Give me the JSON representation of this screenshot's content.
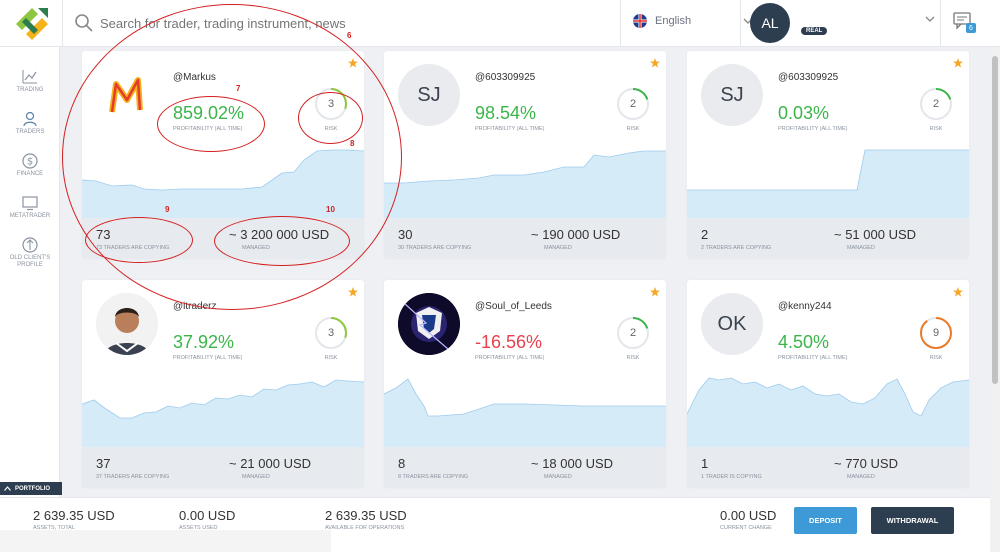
{
  "header": {
    "search_placeholder": "Search for trader, trading instrument, news",
    "language": "English",
    "user_initials": "AL",
    "account_type": "REAL",
    "notifications_count": "6"
  },
  "sidebar": {
    "items": [
      {
        "label": "TRADING",
        "icon": "chart-icon"
      },
      {
        "label": "TRADERS",
        "icon": "traders-icon"
      },
      {
        "label": "FINANCE",
        "icon": "dollar-icon"
      },
      {
        "label": "METATRADER",
        "icon": "monitor-icon"
      },
      {
        "label": "OLD CLIENT'S PROFILE",
        "icon": "profile-icon"
      }
    ],
    "portfolio_tab": "PORTFOLIO"
  },
  "cards": [
    {
      "name": "@Markus",
      "avatar": "",
      "profit": "859.02%",
      "profit_label": "PROFITABILITY (ALL TIME)",
      "risk": "3",
      "risk_level": 0.3,
      "risk_label": "RISK",
      "copiers": "73",
      "copiers_label": "73 TRADERS ARE COPYING",
      "managed": "~ 3 200 000 USD",
      "managed_label": "MANAGED"
    },
    {
      "name": "@603309925",
      "avatar": "SJ",
      "profit": "98.54%",
      "profit_label": "PROFITABILITY (ALL TIME)",
      "risk": "2",
      "risk_level": 0.2,
      "risk_label": "RISK",
      "copiers": "30",
      "copiers_label": "30 TRADERS ARE COPYING",
      "managed": "~ 190 000 USD",
      "managed_label": "MANAGED"
    },
    {
      "name": "@603309925",
      "avatar": "SJ",
      "profit": "0.03%",
      "profit_label": "PROFITABILITY (ALL TIME)",
      "risk": "2",
      "risk_level": 0.2,
      "risk_label": "RISK",
      "copiers": "2",
      "copiers_label": "2 TRADERS ARE COPYING",
      "managed": "~ 51 000 USD",
      "managed_label": "MANAGED"
    },
    {
      "name": "@itraderz",
      "avatar": "",
      "profit": "37.92%",
      "profit_label": "PROFITABILITY (ALL TIME)",
      "risk": "3",
      "risk_level": 0.3,
      "risk_label": "RISK",
      "copiers": "37",
      "copiers_label": "37 TRADERS ARE COPYING",
      "managed": "~ 21 000 USD",
      "managed_label": "MANAGED"
    },
    {
      "name": "@Soul_of_Leeds",
      "avatar": "",
      "profit": "-16.56%",
      "profit_label": "PROFITABILITY (ALL TIME)",
      "risk": "2",
      "risk_level": 0.2,
      "risk_label": "RISK",
      "copiers": "8",
      "copiers_label": "8 TRADERS ARE COPYING",
      "managed": "~ 18 000 USD",
      "managed_label": "MANAGED"
    },
    {
      "name": "@kenny244",
      "avatar": "OK",
      "profit": "4.50%",
      "profit_label": "PROFITABILITY (ALL TIME)",
      "risk": "9",
      "risk_level": 0.9,
      "risk_label": "RISK",
      "copiers": "1",
      "copiers_label": "1 TRADER IS COPYING",
      "managed": "~ 770 USD",
      "managed_label": "MANAGED"
    }
  ],
  "annotations": [
    "6",
    "7",
    "8",
    "9",
    "10"
  ],
  "footer": {
    "assets_total": "2 639.35 USD",
    "assets_total_label": "ASSETS, TOTAL",
    "assets_used": "0.00 USD",
    "assets_used_label": "ASSETS USED",
    "available": "2 639.35 USD",
    "available_label": "AVAILABLE FOR OPERATIONS",
    "current_change": "0.00 USD",
    "current_change_label": "CURRENT CHANGE",
    "deposit_label": "DEPOSIT",
    "withdrawal_label": "WITHDRAWAL"
  },
  "colors": {
    "positive": "#3bb54a",
    "negative": "#e8414d",
    "deposit": "#3d9ad6",
    "withdrawal": "#2d3e50",
    "annotation": "#d42020",
    "chart_fill": "#d6ebf8"
  }
}
